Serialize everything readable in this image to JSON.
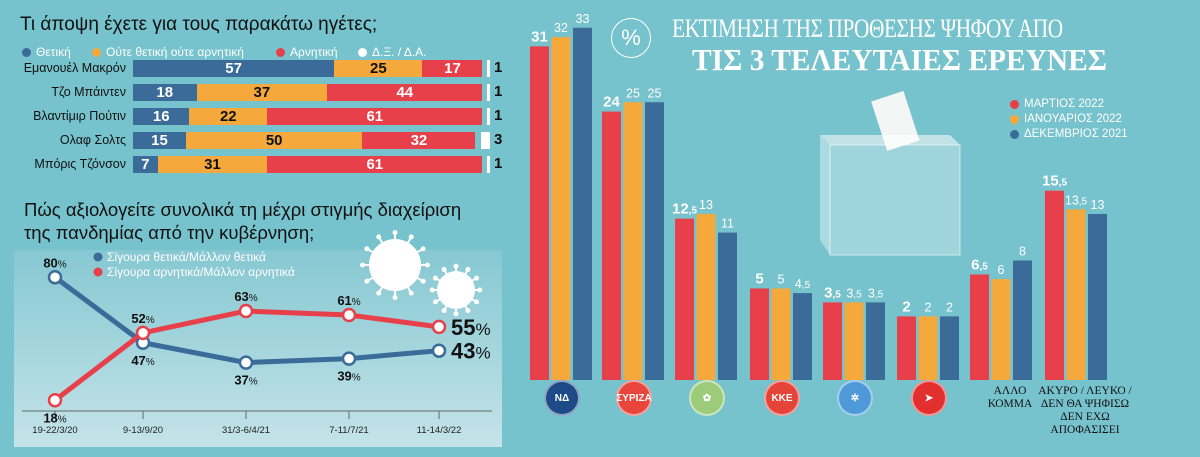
{
  "colors": {
    "positive": "#3b6b98",
    "neutral": "#f5a83c",
    "negative": "#e8404a",
    "dk": "#ffffff"
  },
  "leaders": {
    "title": "Τι άποψη έχετε για τους παρακάτω ηγέτες;",
    "legend": [
      "Θετική",
      "Ούτε θετική ούτε αρνητική",
      "Αρνητική",
      "Δ.Ξ. / Δ.Α."
    ],
    "rows": [
      {
        "name": "Εμανουέλ Μακρόν",
        "values": [
          57,
          25,
          17,
          1
        ]
      },
      {
        "name": "Τζο Μπάιντεν",
        "values": [
          18,
          37,
          44,
          1
        ]
      },
      {
        "name": "Βλαντίμιρ Πούτιν",
        "values": [
          16,
          22,
          61,
          1
        ]
      },
      {
        "name": "Ολαφ Σολτς",
        "values": [
          15,
          50,
          32,
          3
        ]
      },
      {
        "name": "Μπόρις Τζόνσον",
        "values": [
          7,
          31,
          61,
          1
        ]
      }
    ]
  },
  "chart_data": [
    {
      "type": "bar",
      "stacked": true,
      "title": "Τι άποψη έχετε για τους παρακάτω ηγέτες;",
      "categories": [
        "Εμανουέλ Μακρόν",
        "Τζο Μπάιντεν",
        "Βλαντίμιρ Πούτιν",
        "Ολαφ Σολτς",
        "Μπόρις Τζόνσον"
      ],
      "series": [
        {
          "name": "Θετική",
          "values": [
            57,
            18,
            16,
            15,
            7
          ]
        },
        {
          "name": "Ούτε θετική ούτε αρνητική",
          "values": [
            25,
            37,
            22,
            50,
            31
          ]
        },
        {
          "name": "Αρνητική",
          "values": [
            17,
            44,
            61,
            32,
            61
          ]
        },
        {
          "name": "Δ.Ξ. / Δ.Α.",
          "values": [
            1,
            1,
            1,
            3,
            1
          ]
        }
      ]
    },
    {
      "type": "line",
      "title": "Πώς αξιολογείτε συνολικά τη μέχρι στιγμής διαχείριση της πανδημίας από την κυβέρνηση;",
      "categories": [
        "19-22/3/20",
        "9-13/9/20",
        "31/3-6/4/21",
        "7-11/7/21",
        "11-14/3/22"
      ],
      "series": [
        {
          "name": "Σίγουρα θετικά/Μάλλον θετικά",
          "values": [
            80,
            47,
            37,
            39,
            43
          ]
        },
        {
          "name": "Σίγουρα αρνητικά/Μάλλον αρνητικά",
          "values": [
            18,
            52,
            63,
            61,
            55
          ]
        }
      ],
      "unit": "%"
    },
    {
      "type": "bar",
      "title": "ΕΚΤΙΜΗΣΗ ΤΗΣ ΠΡΟΘΕΣΗΣ ΨΗΦΟΥ ΑΠΟ ΤΙΣ 3 ΤΕΛΕΥΤΑΙΕΣ ΕΡΕΥΝΕΣ",
      "unit": "%",
      "categories": [
        "ΝΔ",
        "ΣΥΡΙΖΑ",
        "ΠΑΣΟΚ-ΚΙΝΑΛ",
        "ΚΚΕ",
        "Ελληνική Λύση",
        "ΜέΡΑ25",
        "ΑΛΛΟ ΚΟΜΜΑ",
        "ΑΚΥΡΟ / ΛΕΥΚΟ / ΔΕΝ ΘΑ ΨΗΦΙΣΩ ΔΕΝ ΕΧΩ ΑΠΟΦΑΣΙΣΕΙ"
      ],
      "series": [
        {
          "name": "ΜΑΡΤΙΟΣ 2022",
          "values": [
            31,
            24,
            12.5,
            5,
            3.5,
            2,
            6.5,
            15.5
          ]
        },
        {
          "name": "ΙΑΝΟΥΑΡΙΟΣ 2022",
          "values": [
            32,
            25,
            13,
            5,
            3.5,
            2,
            6,
            13.5
          ]
        },
        {
          "name": "ΔΕΚΕΜΒΡΙΟΣ 2021",
          "values": [
            33,
            25,
            11,
            4.5,
            3.5,
            2,
            8,
            13
          ]
        }
      ]
    }
  ],
  "pandemic": {
    "title_line1": "Πώς αξιολογείτε συνολικά τη μέχρι στιγμής διαχείριση",
    "title_line2": "της πανδημίας από την κυβέρνηση;"
  },
  "vote": {
    "title_line1": "ΕΚΤΙΜΗΣΗ ΤΗΣ ΠΡΟΘΕΣΗΣ ΨΗΦΟΥ ΑΠΟ",
    "title_line2": "ΤΙΣ 3 ΤΕΛΕΥΤΑΙΕΣ ΕΡΕΥΝΕΣ",
    "percent_symbol": "%",
    "logos": [
      {
        "text": "ΝΔ",
        "color": "#1f4a88"
      },
      {
        "text": "ΣΥΡΙΖΑ",
        "color": "#e8453c"
      },
      {
        "text": "✿",
        "color": "#9ccc7a"
      },
      {
        "text": "ΚΚΕ",
        "color": "#e54538"
      },
      {
        "text": "✲",
        "color": "#4e9ad8"
      },
      {
        "text": "➤",
        "color": "#e2302f"
      }
    ],
    "other_label": [
      "ΑΛΛΟ",
      "ΚΟΜΜΑ"
    ],
    "blank_label": [
      "ΑΚΥΡΟ / ΛΕΥΚΟ /",
      "ΔΕΝ ΘΑ ΨΗΦΙΣΩ",
      "ΔΕΝ ΕΧΩ",
      "ΑΠΟΦΑΣΙΣΕΙ"
    ]
  }
}
